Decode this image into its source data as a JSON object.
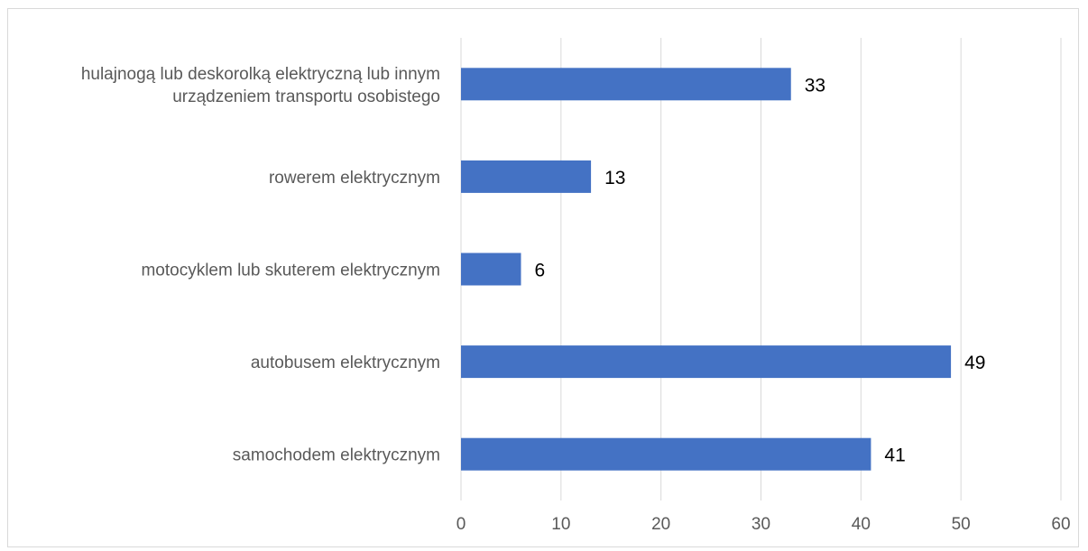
{
  "chart_data": {
    "type": "bar",
    "orientation": "horizontal",
    "categories": [
      [
        "hulajnogą lub deskorolką elektryczną lub innym",
        "urządzeniem transportu osobistego"
      ],
      [
        "rowerem elektrycznym"
      ],
      [
        "motocyklem lub skuterem elektrycznym"
      ],
      [
        "autobusem elektrycznym"
      ],
      [
        "samochodem elektrycznym"
      ]
    ],
    "values": [
      33,
      13,
      6,
      49,
      41
    ],
    "xlim": [
      0,
      60
    ],
    "ticks": [
      "0",
      "10",
      "20",
      "30",
      "40",
      "50",
      "60"
    ],
    "grid": true,
    "data_labels": true,
    "title": "",
    "xlabel": "",
    "ylabel": "",
    "bar_color": "#4472c4",
    "grid_color": "#d9d9d9"
  }
}
